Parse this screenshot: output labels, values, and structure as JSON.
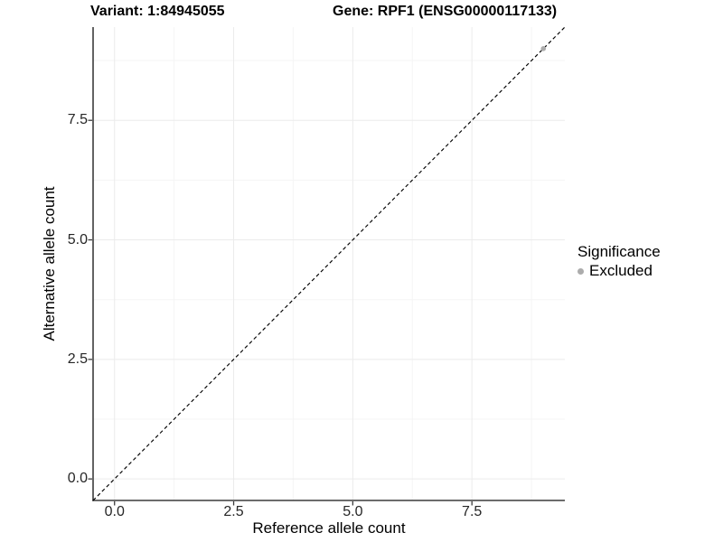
{
  "chart_data": {
    "type": "scatter",
    "title": "Variant: 1:84945055   Gene: RPF1 (ENSG00000117133)",
    "title_left": "Variant: 1:84945055",
    "title_right": "Gene: RPF1 (ENSG00000117133)",
    "xlabel": "Reference allele count",
    "ylabel": "Alternative allele count",
    "xlim": [
      -0.45,
      9.45
    ],
    "ylim": [
      -0.45,
      9.45
    ],
    "x_tick_values": [
      0,
      2.5,
      5,
      7.5
    ],
    "x_tick_labels": [
      "0.0",
      "2.5",
      "5.0",
      "7.5"
    ],
    "y_tick_values": [
      0,
      2.5,
      5,
      7.5
    ],
    "y_tick_labels": [
      "0.0",
      "2.5",
      "5.0",
      "7.5"
    ],
    "x_minor_ticks": [
      1.25,
      3.75,
      6.25,
      8.75
    ],
    "y_minor_ticks": [
      1.25,
      3.75,
      6.25,
      8.75
    ],
    "grid": "major+minor",
    "reference_line": {
      "equation": "y = x",
      "style": "dashed",
      "color": "#000000"
    },
    "series": [
      {
        "name": "Excluded",
        "color": "#acacac",
        "marker": "circle",
        "points": [
          {
            "x": 9,
            "y": 9
          }
        ]
      }
    ],
    "legend": {
      "position": "right",
      "title": "Significance",
      "entries": [
        {
          "label": "Excluded",
          "color": "#acacac"
        }
      ]
    },
    "colors": {
      "background": "#ffffff",
      "axis_line": "#3c3c3c",
      "major_grid": "#ebebeb",
      "minor_grid": "#f5f5f5",
      "tick_text": "#262626",
      "title_text": "#000000"
    }
  }
}
